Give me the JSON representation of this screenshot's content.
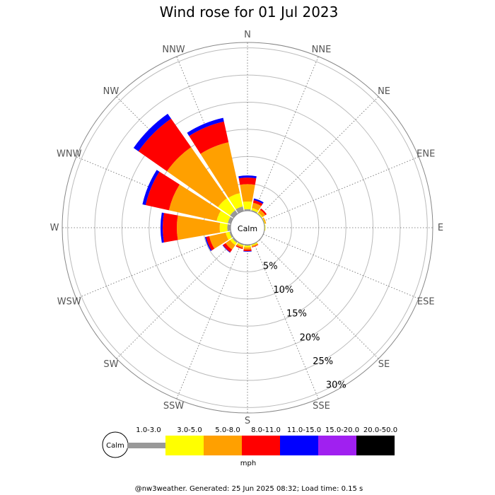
{
  "chart_data": {
    "type": "wind-rose",
    "title": "Wind rose for 01 Jul 2023",
    "directions": [
      "N",
      "NNE",
      "NE",
      "ENE",
      "E",
      "ESE",
      "SE",
      "SSE",
      "S",
      "SSW",
      "SW",
      "WSW",
      "W",
      "WNW",
      "NW",
      "NNW"
    ],
    "ring_labels": [
      "5%",
      "10%",
      "15%",
      "20%",
      "25%",
      "30%"
    ],
    "ring_values": [
      5,
      10,
      15,
      20,
      25,
      30
    ],
    "r_max": 31.0,
    "calm_label": "Calm",
    "calm_percent": 2.3,
    "unit": "mph",
    "bins": [
      {
        "label": "1.0-3.0",
        "color": "#999999"
      },
      {
        "label": "3.0-5.0",
        "color": "#ffff00"
      },
      {
        "label": "5.0-8.0",
        "color": "#ffa000"
      },
      {
        "label": "8.0-11.0",
        "color": "#ff0000"
      },
      {
        "label": "11.0-15.0",
        "color": "#0000ff"
      },
      {
        "label": "15.0-20.0",
        "color": "#a020f0"
      },
      {
        "label": "20.0-50.0",
        "color": "#000000"
      }
    ],
    "series": [
      {
        "direction": "N",
        "values": [
          0.3,
          1.4,
          3.2,
          1.2,
          0.4,
          0,
          0
        ]
      },
      {
        "direction": "NNE",
        "values": [
          0.2,
          0.4,
          1.0,
          0.5,
          0.3,
          0,
          0
        ]
      },
      {
        "direction": "NE",
        "values": [
          0.1,
          0.2,
          0.6,
          0.3,
          0,
          0,
          0
        ]
      },
      {
        "direction": "ENE",
        "values": [
          0.1,
          0.1,
          0.2,
          0,
          0,
          0,
          0
        ]
      },
      {
        "direction": "E",
        "values": [
          0.1,
          0.1,
          0,
          0,
          0,
          0,
          0
        ]
      },
      {
        "direction": "ESE",
        "values": [
          0.1,
          0,
          0,
          0,
          0,
          0,
          0
        ]
      },
      {
        "direction": "SE",
        "values": [
          0.1,
          0,
          0,
          0,
          0,
          0,
          0
        ]
      },
      {
        "direction": "SSE",
        "values": [
          0.1,
          0.2,
          0.2,
          0.1,
          0,
          0,
          0
        ]
      },
      {
        "direction": "S",
        "values": [
          0.2,
          0.3,
          0.4,
          0.3,
          0.1,
          0,
          0
        ]
      },
      {
        "direction": "SSW",
        "values": [
          0.2,
          0.2,
          0.3,
          0.2,
          0,
          0,
          0
        ]
      },
      {
        "direction": "SW",
        "values": [
          0.3,
          0.5,
          1.0,
          0.6,
          0.1,
          0,
          0
        ]
      },
      {
        "direction": "WSW",
        "values": [
          0.3,
          0.7,
          3.1,
          0.6,
          0.2,
          0,
          0
        ]
      },
      {
        "direction": "W",
        "values": [
          0.6,
          1.4,
          7.9,
          2.6,
          0.4,
          0,
          0
        ]
      },
      {
        "direction": "WNW",
        "values": [
          0.6,
          2.1,
          9.0,
          4.4,
          0.6,
          0,
          0
        ]
      },
      {
        "direction": "NW",
        "values": [
          0.8,
          2.7,
          11.5,
          6.4,
          1.1,
          0,
          0
        ]
      },
      {
        "direction": "NNW",
        "values": [
          0.9,
          2.5,
          9.6,
          3.9,
          0.7,
          0,
          0
        ]
      }
    ]
  },
  "footer": "@nw3weather. Generated: 25 Jun 2025 08:32; Load time: 0.15 s"
}
